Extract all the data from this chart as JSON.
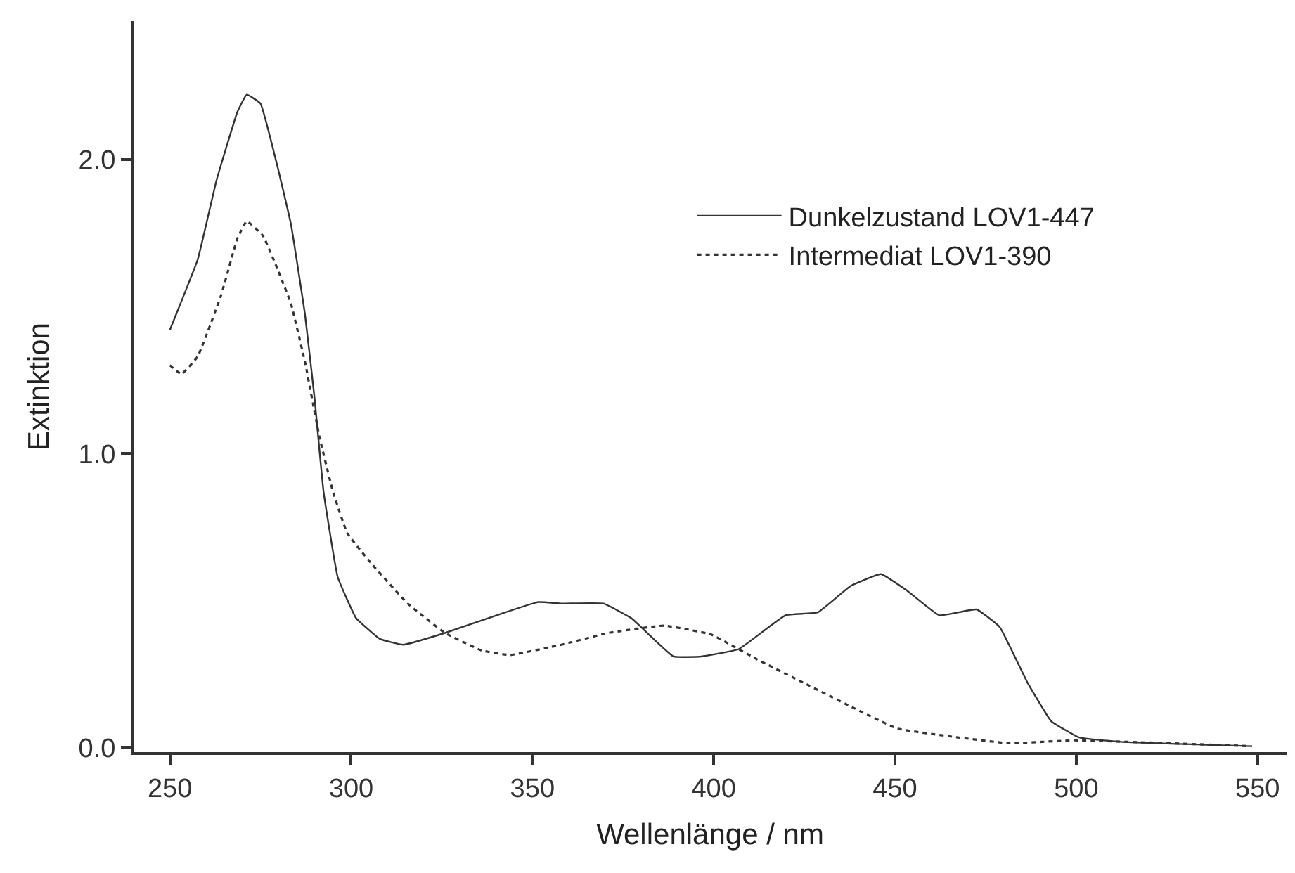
{
  "chart_data": {
    "type": "line",
    "xlabel": "Wellenlänge / nm",
    "ylabel": "Extinktion",
    "xlim": [
      240,
      558
    ],
    "ylim": [
      -0.015,
      2.47
    ],
    "xticks": [
      250,
      300,
      350,
      400,
      450,
      500,
      550
    ],
    "yticks": [
      {
        "value": 0,
        "label": "0.0"
      },
      {
        "value": 1,
        "label": "1.0"
      },
      {
        "value": 2,
        "label": "2.0"
      }
    ],
    "legend": "top right",
    "marker": "none",
    "series": [
      {
        "name": "Dunkelzustand LOV1-447",
        "color": "#333333",
        "line_style": "solid",
        "x": [
          250,
          257.7,
          262.9,
          268.6,
          271.2,
          275,
          279.6,
          283.4,
          287.3,
          289.9,
          292.4,
          296.3,
          301.4,
          307.9,
          314.3,
          325.9,
          341.3,
          351.6,
          358,
          369.6,
          377.3,
          388.9,
          396.6,
          406.9,
          419.8,
          428.7,
          437.8,
          446.1,
          453.2,
          462.2,
          472.5,
          478.9,
          486.6,
          493.1,
          500.8,
          512.3,
          548.4
        ],
        "values": [
          1.42,
          1.66,
          1.93,
          2.16,
          2.22,
          2.19,
          1.98,
          1.78,
          1.47,
          1.19,
          0.87,
          0.58,
          0.44,
          0.37,
          0.35,
          0.39,
          0.455,
          0.495,
          0.49,
          0.49,
          0.44,
          0.31,
          0.31,
          0.335,
          0.45,
          0.46,
          0.55,
          0.59,
          0.535,
          0.45,
          0.47,
          0.41,
          0.22,
          0.09,
          0.035,
          0.02,
          0.005
        ]
      },
      {
        "name": "Intermediat LOV1-390",
        "color": "#333333",
        "line_style": "dotted",
        "x": [
          250,
          253.2,
          257.7,
          264.2,
          268.6,
          271.2,
          275.7,
          279.6,
          283.4,
          287.3,
          291.2,
          295,
          298.9,
          305.3,
          315.6,
          325.9,
          336.1,
          343.9,
          354.2,
          358,
          370.9,
          386.3,
          399.2,
          412,
          424.9,
          437.8,
          450.6,
          467.3,
          481.5,
          499.5,
          548.4
        ],
        "values": [
          1.3,
          1.27,
          1.33,
          1.54,
          1.73,
          1.79,
          1.74,
          1.63,
          1.51,
          1.31,
          1.06,
          0.87,
          0.73,
          0.63,
          0.49,
          0.39,
          0.33,
          0.315,
          0.34,
          0.35,
          0.39,
          0.415,
          0.385,
          0.3,
          0.22,
          0.14,
          0.065,
          0.035,
          0.015,
          0.025,
          0.005
        ]
      }
    ]
  }
}
